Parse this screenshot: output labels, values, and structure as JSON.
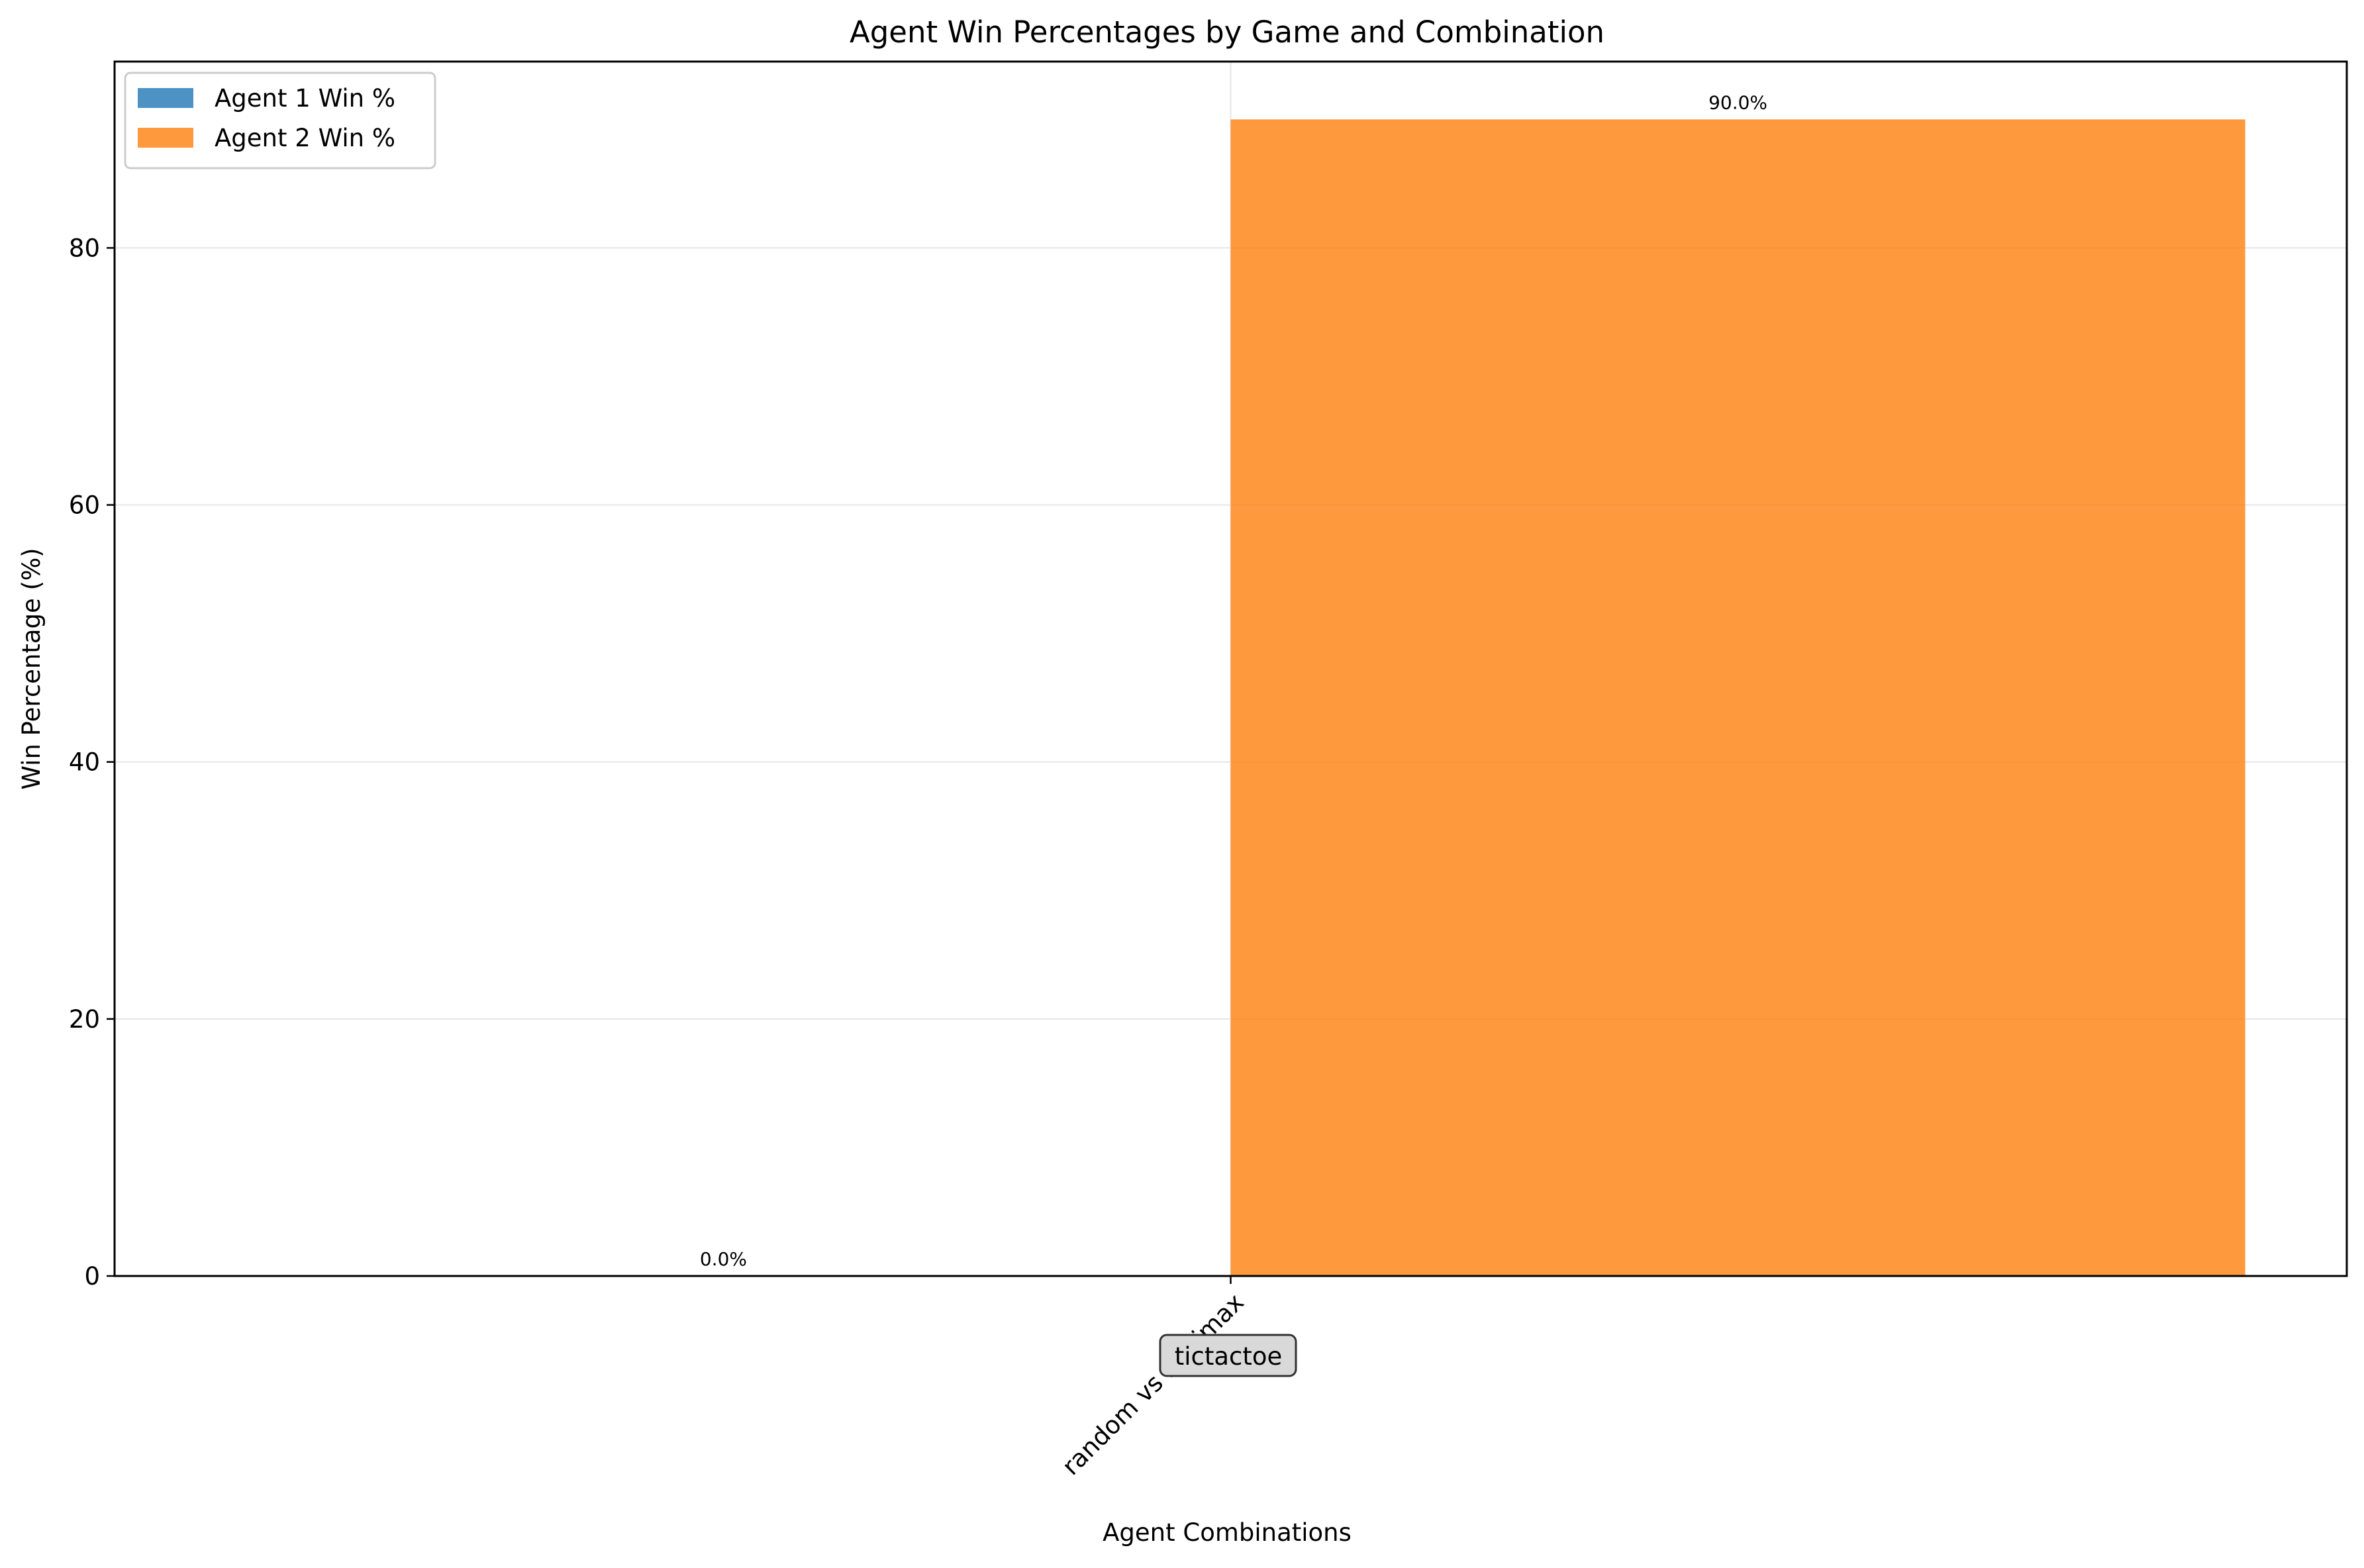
{
  "chart_data": {
    "type": "bar",
    "title": "Agent Win Percentages by Game and Combination",
    "xlabel": "Agent Combinations",
    "ylabel": "Win Percentage (%)",
    "categories": [
      "random vs minimax"
    ],
    "group_label": "tictactoe",
    "series": [
      {
        "name": "Agent 1 Win %",
        "values": [
          0.0
        ],
        "labels": [
          "0.0%"
        ],
        "color": "#1f77b4"
      },
      {
        "name": "Agent 2 Win %",
        "values": [
          90.0
        ],
        "labels": [
          "90.0%"
        ],
        "color": "#ff7f0e"
      }
    ],
    "ylim": [
      0,
      94.5
    ],
    "yticks": [
      0,
      20,
      40,
      60,
      80
    ],
    "ytick_labels": [
      "0",
      "20",
      "40",
      "60",
      "80"
    ],
    "grid": true,
    "legend_position": "top-left"
  }
}
